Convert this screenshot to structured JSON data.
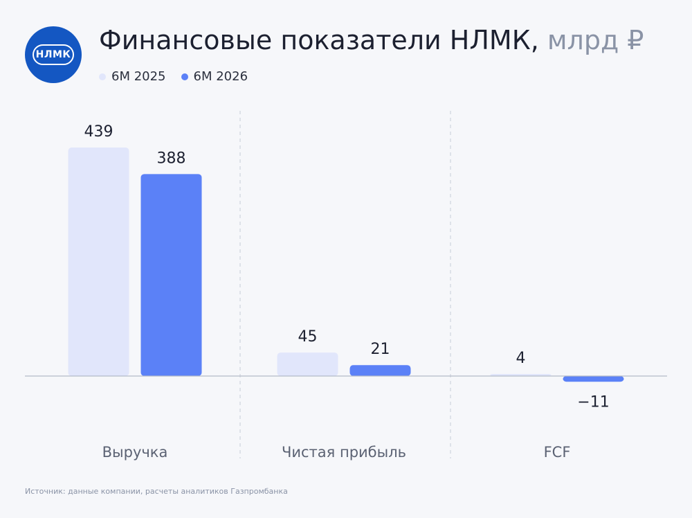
{
  "logo_text": "НЛМК",
  "title_main": "Финансовые показатели НЛМК,",
  "title_unit": "млрд ₽",
  "source": "Источник: данные компании, расчеты аналитиков Газпромбанка",
  "colors": {
    "series_2025": "#e1e6fb",
    "series_2026": "#5b81f7"
  },
  "chart_data": {
    "type": "bar",
    "title": "Финансовые показатели НЛМК, млрд ₽",
    "categories": [
      "Выручка",
      "Чистая прибыль",
      "FCF"
    ],
    "series": [
      {
        "name": "6М 2025",
        "values": [
          439,
          45,
          4
        ],
        "labels": [
          "439",
          "45",
          "4"
        ]
      },
      {
        "name": "6М 2026",
        "values": [
          388,
          21,
          -11
        ],
        "labels": [
          "388",
          "21",
          "−11"
        ]
      }
    ],
    "legend": "top-left",
    "grid": false
  }
}
